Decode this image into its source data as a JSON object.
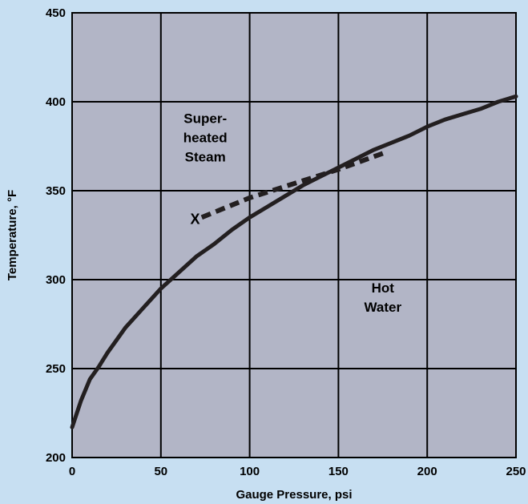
{
  "chart_data": {
    "type": "line",
    "title": "",
    "xlabel": "Gauge Pressure, psi",
    "ylabel": "Temperature, °F",
    "xlim": [
      0,
      250
    ],
    "ylim": [
      200,
      450
    ],
    "xticks": [
      "0",
      "50",
      "100",
      "150",
      "200",
      "250"
    ],
    "yticks": [
      "200",
      "250",
      "300",
      "350",
      "400",
      "450"
    ],
    "grid": true,
    "colors": {
      "background": "#c7dff2",
      "plot_area": "#b2b5c6",
      "curve": "#231f20",
      "grid": "#000000"
    },
    "series": [
      {
        "style": "solid",
        "x": [
          0,
          5,
          10,
          15,
          20,
          25,
          30,
          40,
          50,
          60,
          70,
          80,
          90,
          100,
          110,
          120,
          130,
          140,
          150,
          160,
          170,
          180,
          190,
          200,
          210,
          220,
          230,
          240,
          250
        ],
        "y": [
          217,
          232,
          244,
          251,
          259,
          266,
          273,
          284,
          295,
          304,
          313,
          320,
          328,
          335,
          341,
          347,
          353,
          358,
          363,
          368,
          373,
          377,
          381,
          386,
          390,
          393,
          396,
          400,
          403
        ]
      },
      {
        "style": "dashed",
        "x": [
          73,
          100,
          125,
          150,
          175
        ],
        "y": [
          335,
          346,
          354,
          362,
          371
        ]
      }
    ],
    "annotations": [
      {
        "text": "X",
        "x": 72,
        "y": 334
      },
      {
        "lines": [
          "Super-",
          "heated",
          "Steam"
        ],
        "x": 75,
        "y": 380
      },
      {
        "lines": [
          "Hot",
          "Water"
        ],
        "x": 175,
        "y": 290
      }
    ]
  }
}
